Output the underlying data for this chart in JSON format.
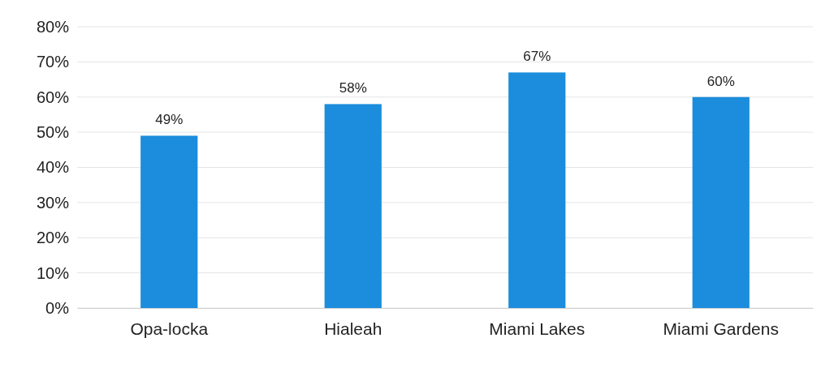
{
  "chart_data": {
    "type": "bar",
    "categories": [
      "Opa-locka",
      "Hialeah",
      "Miami Lakes",
      "Miami Gardens"
    ],
    "values": [
      49,
      58,
      67,
      60
    ],
    "color": "#1b8ddc",
    "data_labels": true,
    "value_labels": [
      "49%",
      "58%",
      "67%",
      "60%"
    ],
    "ylim": [
      0,
      80
    ],
    "yticks": [
      {
        "value": 0,
        "label": "0%"
      },
      {
        "value": 10,
        "label": "10%"
      },
      {
        "value": 20,
        "label": "20%"
      },
      {
        "value": 30,
        "label": "30%"
      },
      {
        "value": 40,
        "label": "40%"
      },
      {
        "value": 50,
        "label": "50%"
      },
      {
        "value": 60,
        "label": "60%"
      },
      {
        "value": 70,
        "label": "70%"
      },
      {
        "value": 80,
        "label": "80%"
      }
    ],
    "grid": "y"
  }
}
